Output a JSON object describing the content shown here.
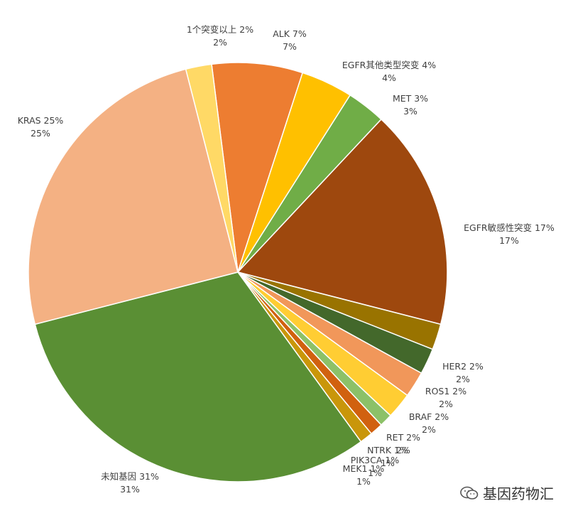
{
  "chart_data": {
    "type": "pie",
    "title": "",
    "start_angle_deg": -7.2,
    "direction": "clockwise",
    "slices": [
      {
        "name": "ALK",
        "label": "ALK 7%",
        "pct": "7%",
        "value": 7,
        "color": "#ED7D31"
      },
      {
        "name": "EGFR其他类型突变",
        "label": "EGFR其他类型突变 4%",
        "pct": "4%",
        "value": 4,
        "color": "#FFC000"
      },
      {
        "name": "MET",
        "label": "MET 3%",
        "pct": "3%",
        "value": 3,
        "color": "#70AD47"
      },
      {
        "name": "EGFR敏感性突变",
        "label": "EGFR敏感性突变 17%",
        "pct": "17%",
        "value": 17,
        "color": "#9E480E"
      },
      {
        "name": "HER2",
        "label": "HER2 2%",
        "pct": "2%",
        "value": 2,
        "color": "#997300"
      },
      {
        "name": "ROS1",
        "label": "ROS1 2%",
        "pct": "2%",
        "value": 2,
        "color": "#43682B"
      },
      {
        "name": "BRAF",
        "label": "BRAF 2%",
        "pct": "2%",
        "value": 2,
        "color": "#F1975A"
      },
      {
        "name": "RET",
        "label": "RET 2%",
        "pct": "2%",
        "value": 2,
        "color": "#FFCD33"
      },
      {
        "name": "NTRK",
        "label": "NTRK 1%",
        "pct": "1%",
        "value": 1,
        "color": "#8CC168"
      },
      {
        "name": "PIK3CA",
        "label": "PIK3CA 1%",
        "pct": "1%",
        "value": 1,
        "color": "#D1610F"
      },
      {
        "name": "MEK1",
        "label": "MEK1 1%",
        "pct": "1%",
        "value": 1,
        "color": "#C9960A"
      },
      {
        "name": "未知基因",
        "label": "未知基因 31%",
        "pct": "31%",
        "value": 31,
        "color": "#5A8F34"
      },
      {
        "name": "KRAS",
        "label": "KRAS 25%",
        "pct": "25%",
        "value": 25,
        "color": "#F4B183"
      },
      {
        "name": "1个突变以上",
        "label": "1个突变以上 2%",
        "pct": "2%",
        "value": 2,
        "color": "#FFD966"
      }
    ]
  },
  "watermark": {
    "text": "基因药物汇",
    "icon": "wechat-icon"
  }
}
